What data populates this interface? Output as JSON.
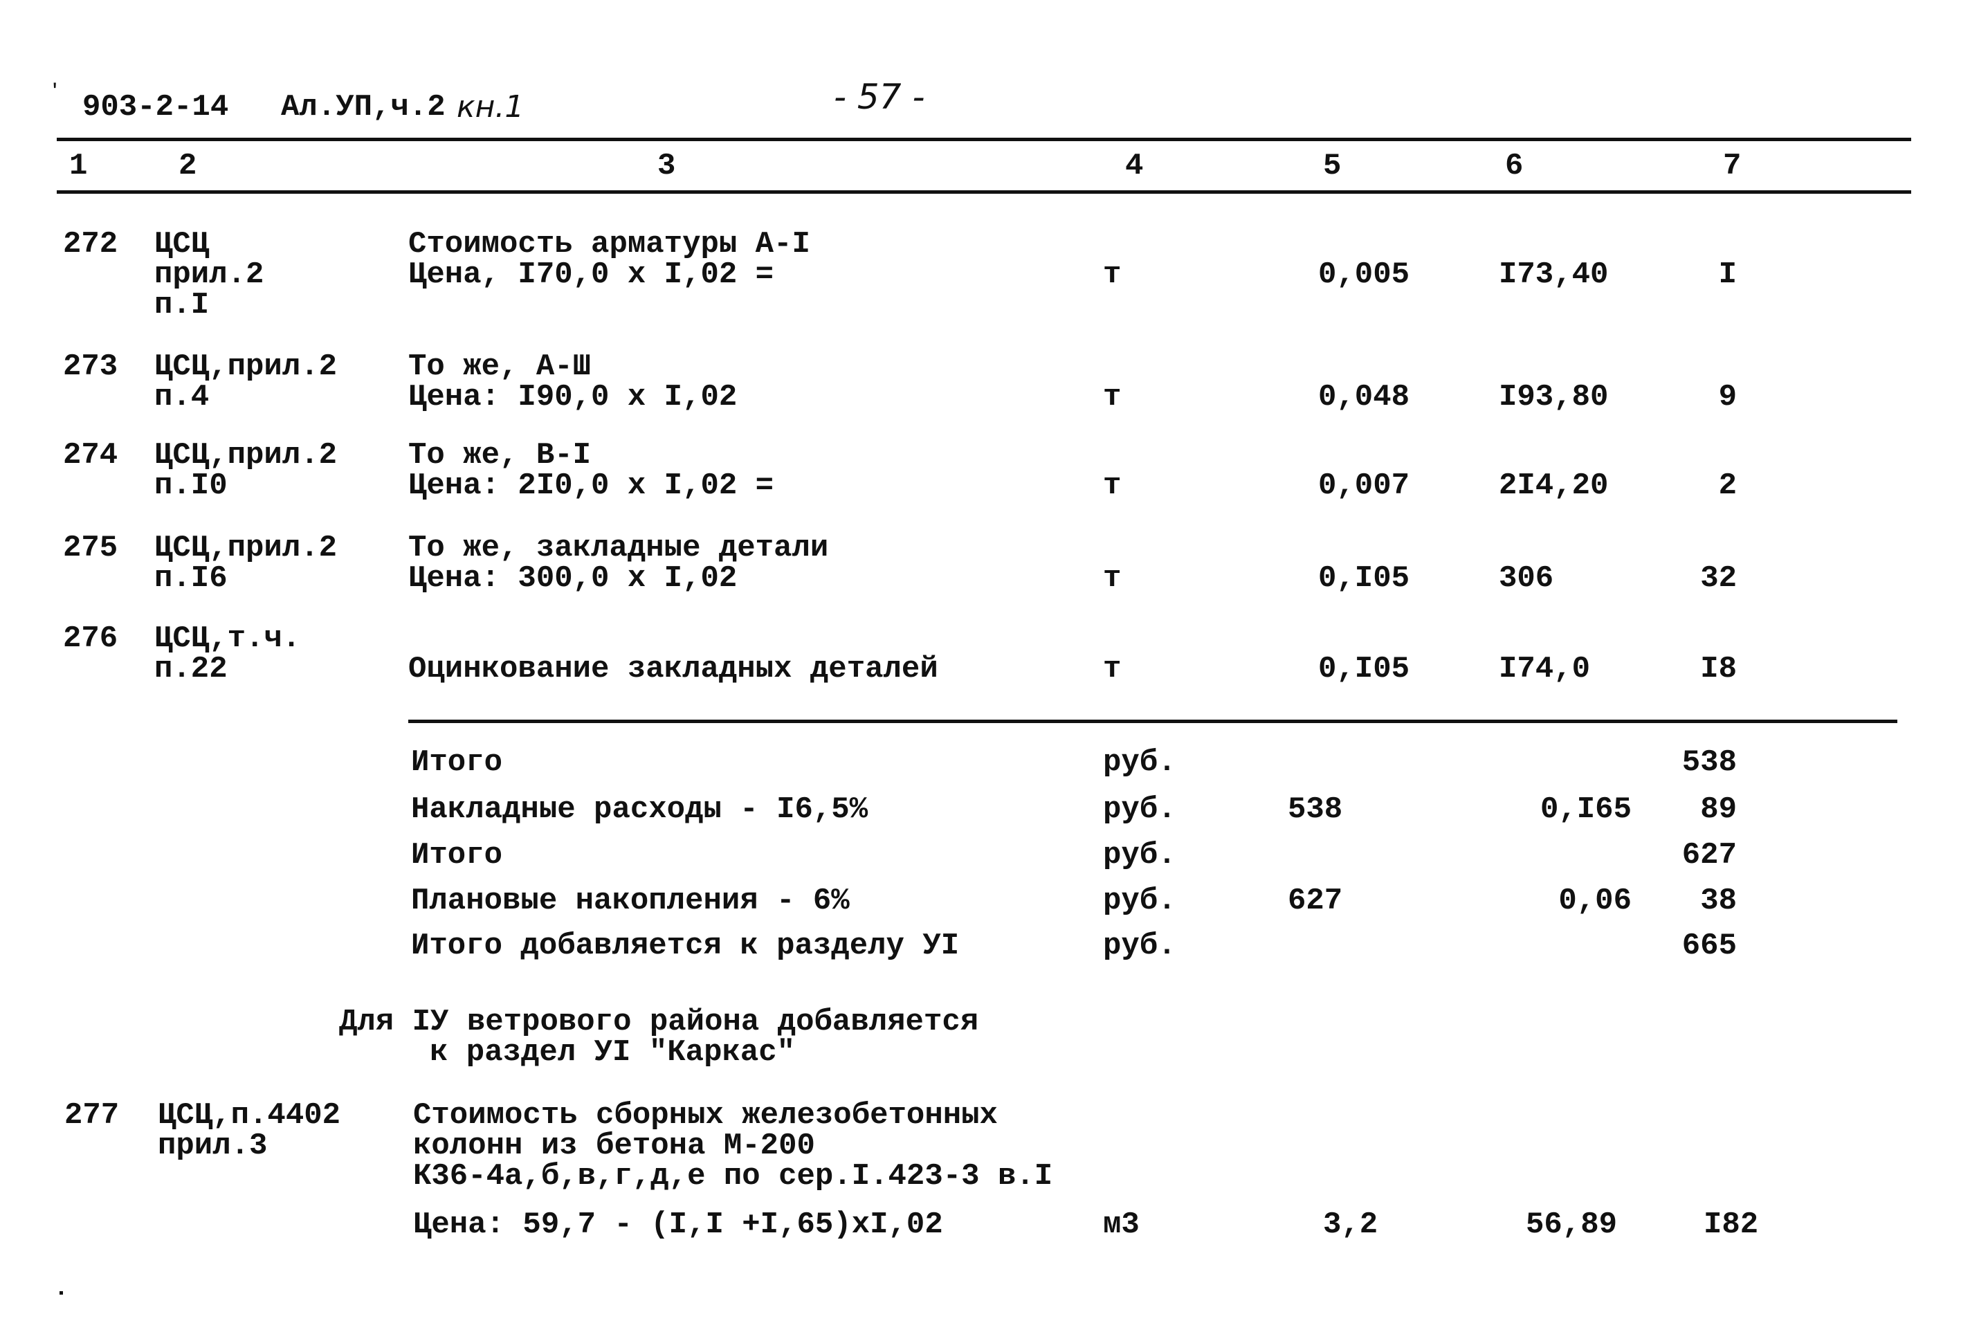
{
  "header": {
    "doc_code": "903-2-14",
    "album": "Ал.УП,ч.2",
    "book": "кн.1",
    "page_number": "- 57 -"
  },
  "column_numbers": [
    "1",
    "2",
    "3",
    "4",
    "5",
    "6",
    "7"
  ],
  "rows": [
    {
      "no": "272",
      "ref": [
        "ЦСЦ",
        "прил.2",
        "п.I"
      ],
      "desc": [
        "Стоимость арматуры А-I",
        "Цена, I70,0 x I,02 ="
      ],
      "unit": "т",
      "qty": "0,005",
      "price": "I73,40",
      "total": "I"
    },
    {
      "no": "273",
      "ref": [
        "ЦСЦ,прил.2",
        "п.4"
      ],
      "desc": [
        "То же, А-Ш",
        "Цена: I90,0 x I,02"
      ],
      "unit": "т",
      "qty": "0,048",
      "price": "I93,80",
      "total": "9"
    },
    {
      "no": "274",
      "ref": [
        "ЦСЦ,прил.2",
        "п.I0"
      ],
      "desc": [
        "То же, В-I",
        "Цена: 2I0,0 x I,02 ="
      ],
      "unit": "т",
      "qty": "0,007",
      "price": "2I4,20",
      "total": "2"
    },
    {
      "no": "275",
      "ref": [
        "ЦСЦ,прил.2",
        "п.I6"
      ],
      "desc": [
        "То же, закладные детали",
        "Цена: 300,0 x I,02"
      ],
      "unit": "т",
      "qty": "0,I05",
      "price": "306",
      "total": "32"
    },
    {
      "no": "276",
      "ref": [
        "ЦСЦ,т.ч.",
        "п.22"
      ],
      "desc": [
        "",
        "Оцинкование закладных деталей"
      ],
      "unit": "т",
      "qty": "0,I05",
      "price": "I74,0",
      "total": "I8"
    }
  ],
  "summary": [
    {
      "label": "Итого",
      "unit": "руб.",
      "base": "",
      "rate": "",
      "total": "538"
    },
    {
      "label": "Накладные расходы - I6,5%",
      "unit": "руб.",
      "base": "538",
      "rate": "0,I65",
      "total": "89"
    },
    {
      "label": "Итого",
      "unit": "руб.",
      "base": "",
      "rate": "",
      "total": "627"
    },
    {
      "label": "Плановые накопления - 6%",
      "unit": "руб.",
      "base": "627",
      "rate": "0,06",
      "total": "38"
    },
    {
      "label": "Итого добавляется к разделу УI",
      "unit": "руб.",
      "base": "",
      "rate": "",
      "total": "665"
    }
  ],
  "section_heading": [
    "Для IУ ветрового района добавляется",
    "к раздел УI \"Каркас\""
  ],
  "row277": {
    "no": "277",
    "ref": [
      "ЦСЦ,п.4402",
      "прил.3"
    ],
    "desc": [
      "Стоимость сборных железобетонных",
      "колонн из бетона М-200",
      "К36-4а,б,в,г,д,е по сер.I.423-3 в.I",
      "Цена: 59,7 - (I,I +I,65)xI,02"
    ],
    "unit": "м3",
    "qty": "3,2",
    "price": "56,89",
    "total": "I82"
  }
}
